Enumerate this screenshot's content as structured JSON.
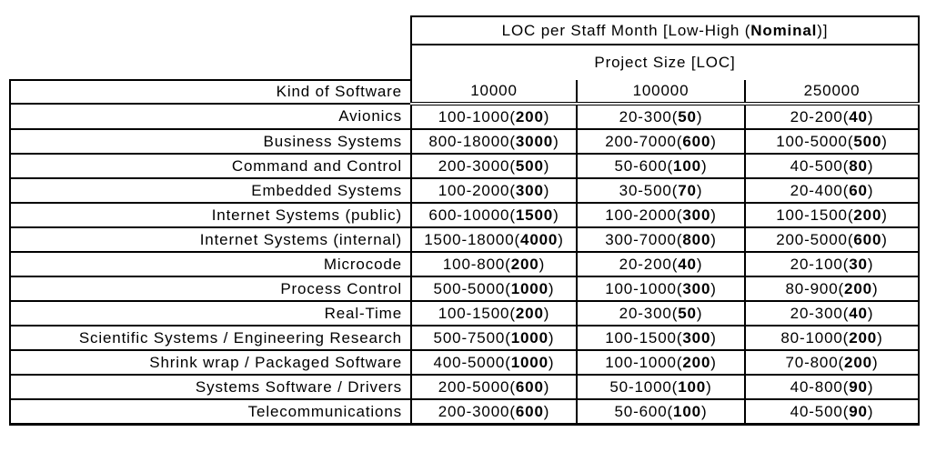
{
  "header": {
    "title_parts": [
      "LOC per Staff Month [Low-High (",
      "Nominal",
      ")]"
    ],
    "subtitle": "Project Size [LOC]"
  },
  "chart_data": {
    "type": "table",
    "title": "LOC per Staff Month [Low-High (Nominal)]",
    "column_group_label": "Project Size [LOC]",
    "row_header_label": "Kind of Software",
    "columns": [
      "10000",
      "100000",
      "250000"
    ],
    "value_format": "low-high(nominal)",
    "rows": [
      {
        "kind": "Avionics",
        "values": [
          [
            100,
            1000,
            200
          ],
          [
            20,
            300,
            50
          ],
          [
            20,
            200,
            40
          ]
        ]
      },
      {
        "kind": "Business Systems",
        "values": [
          [
            800,
            18000,
            3000
          ],
          [
            200,
            7000,
            600
          ],
          [
            100,
            5000,
            500
          ]
        ]
      },
      {
        "kind": "Command and Control",
        "values": [
          [
            200,
            3000,
            500
          ],
          [
            50,
            600,
            100
          ],
          [
            40,
            500,
            80
          ]
        ]
      },
      {
        "kind": "Embedded Systems",
        "values": [
          [
            100,
            2000,
            300
          ],
          [
            30,
            500,
            70
          ],
          [
            20,
            400,
            60
          ]
        ]
      },
      {
        "kind": "Internet Systems (public)",
        "values": [
          [
            600,
            10000,
            1500
          ],
          [
            100,
            2000,
            300
          ],
          [
            100,
            1500,
            200
          ]
        ]
      },
      {
        "kind": "Internet Systems (internal)",
        "values": [
          [
            1500,
            18000,
            4000
          ],
          [
            300,
            7000,
            800
          ],
          [
            200,
            5000,
            600
          ]
        ]
      },
      {
        "kind": "Microcode",
        "values": [
          [
            100,
            800,
            200
          ],
          [
            20,
            200,
            40
          ],
          [
            20,
            100,
            30
          ]
        ]
      },
      {
        "kind": "Process Control",
        "values": [
          [
            500,
            5000,
            1000
          ],
          [
            100,
            1000,
            300
          ],
          [
            80,
            900,
            200
          ]
        ]
      },
      {
        "kind": "Real-Time",
        "values": [
          [
            100,
            1500,
            200
          ],
          [
            20,
            300,
            50
          ],
          [
            20,
            300,
            40
          ]
        ]
      },
      {
        "kind": "Scientific Systems / Engineering Research",
        "values": [
          [
            500,
            7500,
            1000
          ],
          [
            100,
            1500,
            300
          ],
          [
            80,
            1000,
            200
          ]
        ]
      },
      {
        "kind": "Shrink wrap / Packaged Software",
        "values": [
          [
            400,
            5000,
            1000
          ],
          [
            100,
            1000,
            200
          ],
          [
            70,
            800,
            200
          ]
        ]
      },
      {
        "kind": "Systems Software / Drivers",
        "values": [
          [
            200,
            5000,
            600
          ],
          [
            50,
            1000,
            100
          ],
          [
            40,
            800,
            90
          ]
        ]
      },
      {
        "kind": "Telecommunications",
        "values": [
          [
            200,
            3000,
            600
          ],
          [
            50,
            600,
            100
          ],
          [
            40,
            500,
            90
          ]
        ]
      }
    ]
  }
}
